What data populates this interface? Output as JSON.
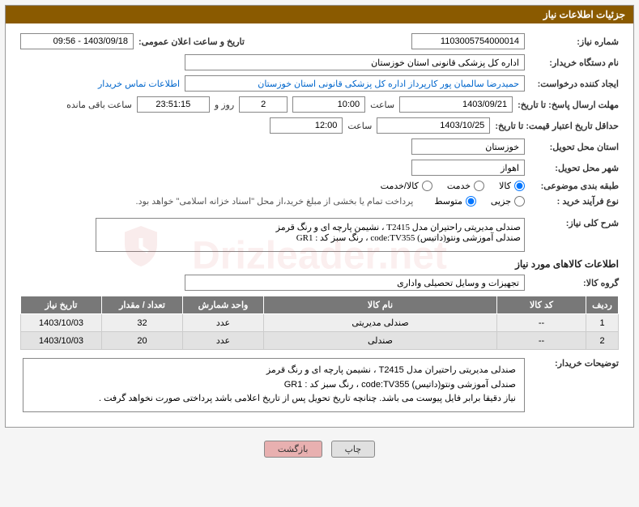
{
  "header": {
    "title": "جزئیات اطلاعات نیاز"
  },
  "fields": {
    "need_number_label": "شماره نیاز:",
    "need_number": "1103005754000014",
    "announce_label": "تاریخ و ساعت اعلان عمومی:",
    "announce_value": "1403/09/18 - 09:56",
    "buyer_org_label": "نام دستگاه خریدار:",
    "buyer_org": "اداره کل پزشکی قانونی استان خوزستان",
    "requester_label": "ایجاد کننده درخواست:",
    "requester": "حمیدرضا سالمیان پور کارپرداز اداره کل پزشکی قانونی استان خوزستان",
    "contact_link": "اطلاعات تماس خریدار",
    "deadline_send_label": "مهلت ارسال پاسخ: تا تاریخ:",
    "deadline_send_date": "1403/09/21",
    "time_label": "ساعت",
    "deadline_send_time": "10:00",
    "days_value": "2",
    "days_label": "روز و",
    "countdown": "23:51:15",
    "remain_label": "ساعت باقی مانده",
    "validity_label": "حداقل تاریخ اعتبار قیمت: تا تاریخ:",
    "validity_date": "1403/10/25",
    "validity_time": "12:00",
    "province_label": "استان محل تحویل:",
    "province": "خوزستان",
    "city_label": "شهر محل تحویل:",
    "city": "اهواز",
    "category_label": "طبقه بندی موضوعی:",
    "cat_goods": "کالا",
    "cat_service": "خدمت",
    "cat_both": "کالا/خدمت",
    "process_label": "نوع فرآیند خرید :",
    "proc_small": "جزیی",
    "proc_med": "متوسط",
    "process_note": "پرداخت تمام یا بخشی از مبلغ خرید،از محل \"اسناد خزانه اسلامی\" خواهد بود.",
    "overview_label": "شرح کلی نیاز:",
    "overview_text": "صندلی مدیریتی راحتیران مدل T2415 ، نشیمن پارچه ای و رنگ قرمز\nصندلی آموزشی ونتو(داتیس) code:TV355 ، رنگ سبز کد : GR1",
    "items_title": "اطلاعات کالاهای مورد نیاز",
    "group_label": "گروه کالا:",
    "group_value": "تجهیزات و وسایل تحصیلی واداری",
    "buyer_desc_label": "توضیحات خریدار:",
    "buyer_desc_l1": "صندلی مدیریتی راحتیران مدل T2415 ، نشیمن پارچه ای و رنگ قرمز",
    "buyer_desc_l2": "صندلی آموزشی ونتو(داتیس) code:TV355 ، رنگ سبز کد : GR1",
    "buyer_desc_l3": "نیاز دقیقا برابر فایل پیوست می باشد. چنانچه تاریخ تحویل پس از تاریخ اعلامی باشد پرداختی صورت نخواهد گرفت ."
  },
  "table": {
    "headers": [
      "ردیف",
      "کد کالا",
      "نام کالا",
      "واحد شمارش",
      "تعداد / مقدار",
      "تاریخ نیاز"
    ],
    "rows": [
      [
        "1",
        "--",
        "صندلی مدیریتی",
        "عدد",
        "32",
        "1403/10/03"
      ],
      [
        "2",
        "--",
        "صندلی",
        "عدد",
        "20",
        "1403/10/03"
      ]
    ]
  },
  "buttons": {
    "print": "چاپ",
    "back": "بازگشت"
  },
  "colors": {
    "header_bg": "#8a5a00",
    "table_header_bg": "#787878",
    "btn_back_bg": "#e8b0b0"
  }
}
